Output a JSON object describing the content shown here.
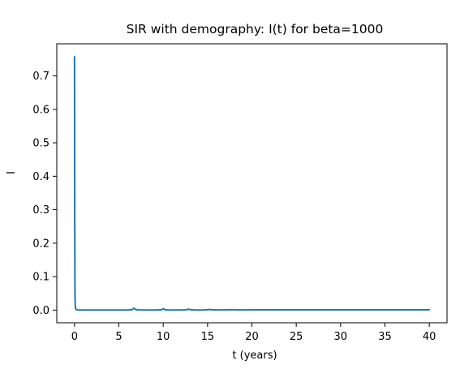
{
  "chart_data": {
    "type": "line",
    "title": "SIR with demography: I(t) for beta=1000",
    "xlabel": "t (years)",
    "ylabel": "I",
    "xlim": [
      -2.0,
      42.0
    ],
    "ylim": [
      -0.038,
      0.796
    ],
    "xticks": [
      0,
      5,
      10,
      15,
      20,
      25,
      30,
      35,
      40
    ],
    "yticks": [
      0.0,
      0.1,
      0.2,
      0.3,
      0.4,
      0.5,
      0.6,
      0.7
    ],
    "xtick_labels": [
      "0",
      "5",
      "10",
      "15",
      "20",
      "25",
      "30",
      "35",
      "40"
    ],
    "ytick_labels": [
      "0.0",
      "0.1",
      "0.2",
      "0.3",
      "0.4",
      "0.5",
      "0.6",
      "0.7"
    ],
    "grid": false,
    "line_color": "#1f77b4",
    "series": [
      {
        "x": [
          0,
          0.02,
          0.05,
          0.08,
          0.12,
          0.2,
          0.35,
          0.6,
          1.0,
          2,
          3,
          4,
          5,
          6,
          6.5,
          6.7,
          6.9,
          7.2,
          8,
          9,
          9.8,
          10.0,
          10.2,
          10.6,
          11.5,
          12.5,
          12.9,
          13.1,
          13.6,
          14.5,
          15.2,
          15.4,
          15.8,
          16.8,
          17.6,
          17.9,
          18.4,
          19.5,
          20.2,
          21,
          22,
          23,
          24,
          25,
          26,
          27,
          28,
          29,
          30,
          31,
          32,
          33,
          34,
          35,
          36,
          37,
          38,
          39,
          40
        ],
        "y": [
          0.757,
          0.3,
          0.05,
          0.012,
          0.004,
          0.0015,
          0.0006,
          0.0003,
          0.0002,
          0.0002,
          0.0002,
          0.0002,
          0.0002,
          0.0003,
          0.0012,
          0.0055,
          0.0015,
          0.0004,
          0.0002,
          0.0002,
          0.0008,
          0.004,
          0.0012,
          0.0003,
          0.0002,
          0.0005,
          0.0025,
          0.001,
          0.0003,
          0.0003,
          0.0016,
          0.0012,
          0.0004,
          0.0004,
          0.0012,
          0.001,
          0.0005,
          0.0006,
          0.0009,
          0.0007,
          0.0007,
          0.0008,
          0.0007,
          0.0008,
          0.0007,
          0.0008,
          0.0007,
          0.0008,
          0.0007,
          0.0008,
          0.0008,
          0.0007,
          0.0008,
          0.0008,
          0.0007,
          0.0008,
          0.0008,
          0.0008,
          0.0008
        ]
      }
    ]
  }
}
